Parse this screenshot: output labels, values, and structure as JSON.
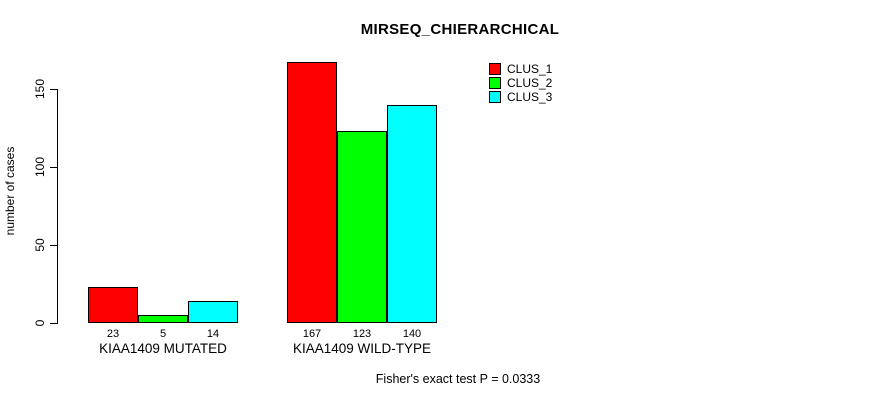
{
  "chart_data": {
    "type": "bar",
    "title": "MIRSEQ_CHIERARCHICAL",
    "xlabel": "",
    "ylabel": "number of cases",
    "categories": [
      "KIAA1409 MUTATED",
      "KIAA1409 WILD-TYPE"
    ],
    "series": [
      {
        "name": "CLUS_1",
        "color": "#ff0000",
        "values": [
          23,
          167
        ]
      },
      {
        "name": "CLUS_2",
        "color": "#00ff00",
        "values": [
          5,
          123
        ]
      },
      {
        "name": "CLUS_3",
        "color": "#00ffff",
        "values": [
          14,
          140
        ]
      }
    ],
    "bar_value_labels": [
      [
        "23",
        "5",
        "14"
      ],
      [
        "167",
        "123",
        "140"
      ]
    ],
    "yticks": [
      0,
      50,
      100,
      150
    ],
    "ylim": [
      0,
      170
    ],
    "grid": false,
    "legend_position": "top-right",
    "bar_border_color": "#000000",
    "annotation": "Fisher's exact test P = 0.0333"
  }
}
